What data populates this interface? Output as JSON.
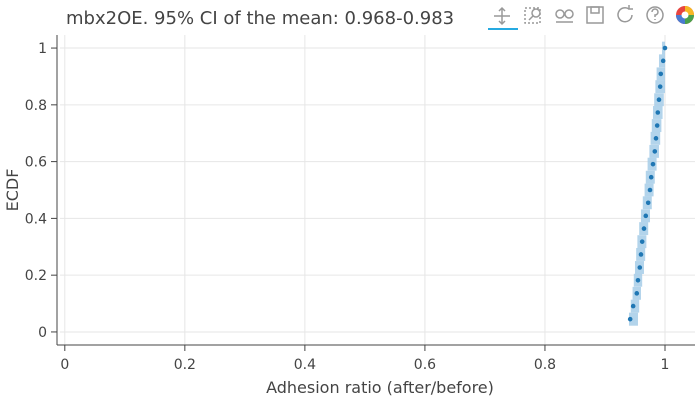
{
  "chart_data": {
    "type": "ecdf",
    "title": "mbx2OE. 95% CI of the mean: 0.968-0.983",
    "x_label": "Adhesion ratio (after/before)",
    "y_label": "ECDF",
    "xlim": [
      -0.008,
      1.05
    ],
    "ylim": [
      -0.046,
      1.046
    ],
    "xticks": [
      0,
      0.2,
      0.4,
      0.6,
      0.8,
      1
    ],
    "yticks": [
      0,
      0.2,
      0.4,
      0.6,
      0.8,
      1
    ],
    "grid": true,
    "point_color": "#1f77b4",
    "band_color": "#a6cde8",
    "x": [
      0.942,
      0.947,
      0.953,
      0.955,
      0.958,
      0.96,
      0.962,
      0.965,
      0.968,
      0.972,
      0.975,
      0.977,
      0.98,
      0.983,
      0.985,
      0.987,
      0.988,
      0.99,
      0.992,
      0.993,
      0.997,
      1.0
    ],
    "y": [
      0.045,
      0.091,
      0.136,
      0.182,
      0.227,
      0.273,
      0.318,
      0.364,
      0.409,
      0.455,
      0.5,
      0.545,
      0.591,
      0.636,
      0.682,
      0.727,
      0.773,
      0.818,
      0.864,
      0.909,
      0.955,
      1.0
    ],
    "band_low": [
      0.94,
      0.943,
      0.946,
      0.948,
      0.95,
      0.952,
      0.954,
      0.957,
      0.96,
      0.963,
      0.966,
      0.968,
      0.971,
      0.974,
      0.976,
      0.978,
      0.98,
      0.982,
      0.984,
      0.986,
      0.99,
      0.995
    ],
    "band_high": [
      0.955,
      0.957,
      0.96,
      0.962,
      0.965,
      0.967,
      0.969,
      0.972,
      0.975,
      0.978,
      0.981,
      0.983,
      0.986,
      0.99,
      0.992,
      0.994,
      0.996,
      0.998,
      1.0,
      1.0,
      1.0,
      1.0
    ]
  }
}
